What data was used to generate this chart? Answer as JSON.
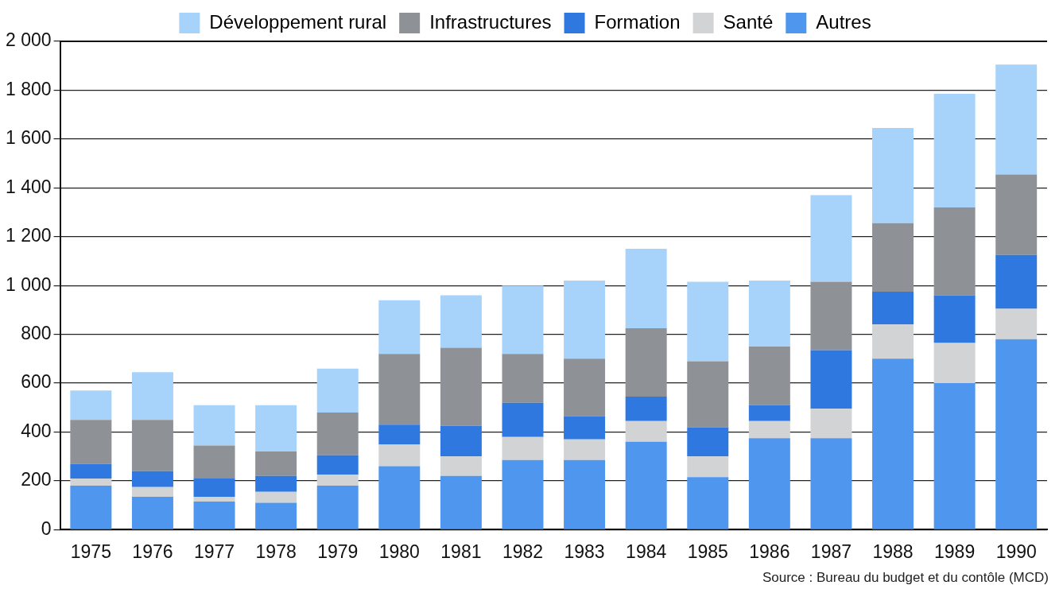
{
  "chart_data": {
    "type": "bar",
    "stacked": true,
    "categories": [
      "1975",
      "1976",
      "1977",
      "1978",
      "1979",
      "1980",
      "1981",
      "1982",
      "1983",
      "1984",
      "1985",
      "1986",
      "1987",
      "1988",
      "1989",
      "1990"
    ],
    "series": [
      {
        "name": "Autres",
        "color": "#4f97ee",
        "values": [
          180,
          135,
          115,
          110,
          180,
          260,
          220,
          285,
          285,
          360,
          215,
          375,
          375,
          700,
          600,
          780
        ]
      },
      {
        "name": "Santé",
        "color": "#d2d3d5",
        "values": [
          30,
          40,
          20,
          45,
          45,
          90,
          80,
          95,
          85,
          85,
          85,
          70,
          120,
          140,
          165,
          125
        ]
      },
      {
        "name": "Formation",
        "color": "#2e78e0",
        "values": [
          60,
          65,
          75,
          65,
          80,
          80,
          125,
          140,
          95,
          100,
          120,
          65,
          240,
          135,
          195,
          220
        ]
      },
      {
        "name": "Infrastructures",
        "color": "#8e9296",
        "values": [
          180,
          210,
          135,
          100,
          175,
          290,
          320,
          200,
          235,
          280,
          270,
          240,
          280,
          280,
          360,
          330
        ]
      },
      {
        "name": "Développement rural",
        "color": "#a7d2fa",
        "values": [
          120,
          195,
          165,
          190,
          180,
          220,
          215,
          280,
          320,
          325,
          325,
          270,
          355,
          390,
          465,
          450
        ]
      }
    ],
    "ylim": [
      0,
      2000
    ],
    "yticks": [
      {
        "value": 0,
        "label": "0"
      },
      {
        "value": 200,
        "label": "200"
      },
      {
        "value": 400,
        "label": "400"
      },
      {
        "value": 600,
        "label": "600"
      },
      {
        "value": 800,
        "label": "800"
      },
      {
        "value": 1000,
        "label": "1 000"
      },
      {
        "value": 1200,
        "label": "1 200"
      },
      {
        "value": 1400,
        "label": "1 400"
      },
      {
        "value": 1600,
        "label": "1 600"
      },
      {
        "value": 1800,
        "label": "1 800"
      },
      {
        "value": 2000,
        "label": "2 000"
      }
    ],
    "grid": "y",
    "legend": "top",
    "annotations": [
      "Source : Bureau du budget et du contôle (MCD)"
    ]
  }
}
